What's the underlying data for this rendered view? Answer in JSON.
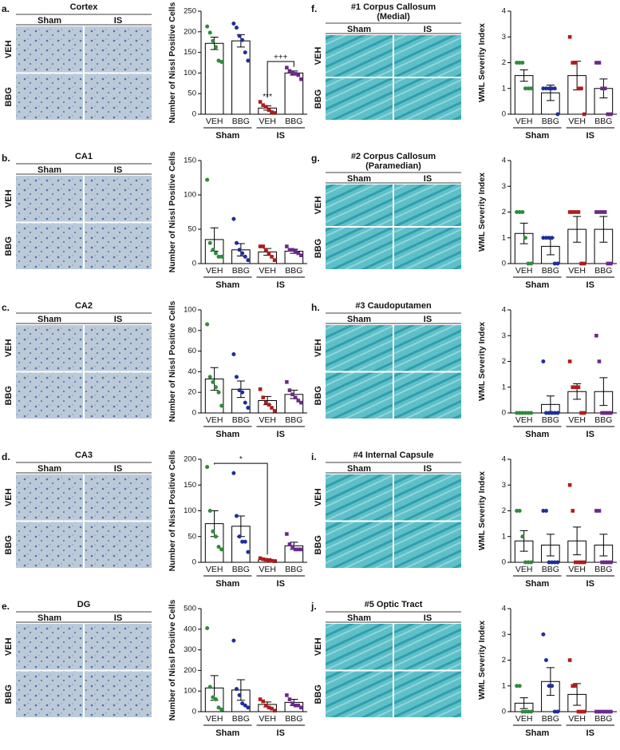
{
  "chart_data": [
    {
      "type": "bar",
      "panel": "a.",
      "title": [
        "Cortex"
      ],
      "columns": [
        "Sham",
        "IS"
      ],
      "rows": [
        "VEH",
        "BBG"
      ],
      "image_style": "nissl",
      "ylabel": "Number of Nissl Positive Cells",
      "ylim": [
        0,
        250
      ],
      "yticks": [
        0,
        50,
        100,
        150,
        200,
        250
      ],
      "categories": [
        "VEH",
        "BBG",
        "VEH",
        "BBG"
      ],
      "groups": [
        "Sham",
        "IS"
      ],
      "colors": [
        "#2e8b3a",
        "#1f2e9a",
        "#b01c1c",
        "#6a2a8a"
      ],
      "markers": [
        "circle",
        "circle",
        "square",
        "square"
      ],
      "values": [
        172,
        178,
        15,
        100
      ],
      "errors": [
        15,
        15,
        5,
        5
      ],
      "points": [
        [
          213,
          198,
          178,
          163,
          130,
          127
        ],
        [
          220,
          210,
          190,
          180,
          150,
          130
        ],
        [
          30,
          22,
          18,
          10,
          5,
          3
        ],
        [
          113,
          105,
          100,
          98,
          95,
          85
        ]
      ],
      "annotations": [
        "***",
        "+++"
      ]
    },
    {
      "type": "bar",
      "panel": "b.",
      "title": [
        "CA1"
      ],
      "columns": [
        "Sham",
        "IS"
      ],
      "rows": [
        "VEH",
        "BBG"
      ],
      "image_style": "nissl",
      "ylabel": "Number of Nissl Positive Cells",
      "ylim": [
        0,
        150
      ],
      "yticks": [
        0,
        50,
        100,
        150
      ],
      "categories": [
        "VEH",
        "BBG",
        "VEH",
        "BBG"
      ],
      "groups": [
        "Sham",
        "IS"
      ],
      "colors": [
        "#2e8b3a",
        "#1f2e9a",
        "#b01c1c",
        "#6a2a8a"
      ],
      "markers": [
        "circle",
        "circle",
        "square",
        "square"
      ],
      "values": [
        35,
        20,
        17,
        18
      ],
      "errors": [
        17,
        9,
        5,
        3
      ],
      "points": [
        [
          122,
          30,
          20,
          15,
          10,
          10
        ],
        [
          65,
          30,
          20,
          15,
          10,
          5
        ],
        [
          25,
          25,
          20,
          15,
          10,
          5
        ],
        [
          25,
          20,
          20,
          18,
          15,
          12
        ]
      ]
    },
    {
      "type": "bar",
      "panel": "c.",
      "title": [
        "CA2"
      ],
      "columns": [
        "Sham",
        "IS"
      ],
      "rows": [
        "VEH",
        "BBG"
      ],
      "image_style": "nissl",
      "ylabel": "Number of Nissl Positive Cells",
      "ylim": [
        0,
        100
      ],
      "yticks": [
        0,
        20,
        40,
        60,
        80,
        100
      ],
      "categories": [
        "VEH",
        "BBG",
        "VEH",
        "BBG"
      ],
      "groups": [
        "Sham",
        "IS"
      ],
      "colors": [
        "#2e8b3a",
        "#1f2e9a",
        "#b01c1c",
        "#6a2a8a"
      ],
      "markers": [
        "circle",
        "circle",
        "square",
        "square"
      ],
      "values": [
        33,
        23,
        12,
        18
      ],
      "errors": [
        11,
        8,
        4,
        4
      ],
      "points": [
        [
          86,
          35,
          30,
          25,
          20,
          7
        ],
        [
          57,
          35,
          22,
          20,
          10,
          5
        ],
        [
          23,
          15,
          10,
          8,
          5,
          2
        ],
        [
          30,
          22,
          18,
          15,
          12,
          10
        ]
      ]
    },
    {
      "type": "bar",
      "panel": "d.",
      "title": [
        "CA3"
      ],
      "columns": [
        "Sham",
        "IS"
      ],
      "rows": [
        "VEH",
        "BBG"
      ],
      "image_style": "nissl",
      "ylabel": "Number of Nissl Positive Cells",
      "ylim": [
        0,
        200
      ],
      "yticks": [
        0,
        50,
        100,
        150,
        200
      ],
      "categories": [
        "VEH",
        "BBG",
        "VEH",
        "BBG"
      ],
      "groups": [
        "Sham",
        "IS"
      ],
      "colors": [
        "#2e8b3a",
        "#1f2e9a",
        "#b01c1c",
        "#6a2a8a"
      ],
      "markers": [
        "circle",
        "circle",
        "square",
        "square"
      ],
      "values": [
        75,
        70,
        5,
        32
      ],
      "errors": [
        25,
        20,
        2,
        7
      ],
      "points": [
        [
          185,
          100,
          60,
          50,
          30,
          25
        ],
        [
          173,
          90,
          50,
          40,
          40,
          20
        ],
        [
          8,
          6,
          5,
          4,
          3,
          2
        ],
        [
          55,
          35,
          30,
          25,
          25,
          25
        ]
      ],
      "annotations": [
        "*"
      ]
    },
    {
      "type": "bar",
      "panel": "e.",
      "title": [
        "DG"
      ],
      "columns": [
        "Sham",
        "IS"
      ],
      "rows": [
        "VEH",
        "BBG"
      ],
      "image_style": "nissl",
      "ylabel": "Number of Nissl Positive Cells",
      "ylim": [
        0,
        500
      ],
      "yticks": [
        0,
        100,
        200,
        300,
        400,
        500
      ],
      "categories": [
        "VEH",
        "BBG",
        "VEH",
        "BBG"
      ],
      "groups": [
        "Sham",
        "IS"
      ],
      "colors": [
        "#2e8b3a",
        "#1f2e9a",
        "#b01c1c",
        "#6a2a8a"
      ],
      "markers": [
        "circle",
        "circle",
        "square",
        "square"
      ],
      "values": [
        115,
        105,
        35,
        45
      ],
      "errors": [
        60,
        50,
        12,
        15
      ],
      "points": [
        [
          405,
          120,
          70,
          60,
          20,
          10
        ],
        [
          345,
          110,
          80,
          40,
          30,
          20
        ],
        [
          60,
          50,
          30,
          20,
          15,
          5
        ],
        [
          80,
          60,
          40,
          30,
          30,
          20
        ]
      ]
    },
    {
      "type": "bar",
      "panel": "f.",
      "title": [
        "#1 Corpus Callosum",
        "(Medial)"
      ],
      "columns": [
        "Sham",
        "IS"
      ],
      "rows": [
        "VEH",
        "BBG"
      ],
      "image_style": "lfb",
      "ylabel": "WML Severity Index",
      "ylim": [
        0,
        4
      ],
      "yticks": [
        0,
        1,
        2,
        3,
        4
      ],
      "categories": [
        "VEH",
        "BBG",
        "VEH",
        "BBG"
      ],
      "groups": [
        "Sham",
        "IS"
      ],
      "colors": [
        "#2e8b3a",
        "#1f2e9a",
        "#b01c1c",
        "#6a2a8a"
      ],
      "markers": [
        "circle",
        "circle",
        "square",
        "square"
      ],
      "values": [
        1.5,
        0.83,
        1.5,
        1.0
      ],
      "errors": [
        0.22,
        0.3,
        0.56,
        0.37
      ],
      "points": [
        [
          2,
          2,
          2,
          1,
          1,
          1
        ],
        [
          1,
          1,
          1,
          1,
          1,
          0
        ],
        [
          3,
          2,
          2,
          1,
          1,
          0
        ],
        [
          2,
          2,
          1,
          1,
          0,
          0
        ]
      ]
    },
    {
      "type": "bar",
      "panel": "g.",
      "title": [
        "#2 Corpus Callosum",
        "(Paramedian)"
      ],
      "columns": [
        "Sham",
        "IS"
      ],
      "rows": [
        "VEH",
        "BBG"
      ],
      "image_style": "lfb",
      "ylabel": "WML Severity Index",
      "ylim": [
        0,
        4
      ],
      "yticks": [
        0,
        1,
        2,
        3,
        4
      ],
      "categories": [
        "VEH",
        "BBG",
        "VEH",
        "BBG"
      ],
      "groups": [
        "Sham",
        "IS"
      ],
      "colors": [
        "#2e8b3a",
        "#1f2e9a",
        "#b01c1c",
        "#6a2a8a"
      ],
      "markers": [
        "circle",
        "circle",
        "square",
        "square"
      ],
      "values": [
        1.17,
        0.67,
        1.33,
        1.33
      ],
      "errors": [
        0.4,
        0.33,
        0.5,
        0.5
      ],
      "points": [
        [
          2,
          2,
          2,
          1,
          0,
          0
        ],
        [
          1,
          1,
          1,
          1,
          0,
          0
        ],
        [
          2,
          2,
          2,
          2,
          0,
          0
        ],
        [
          2,
          2,
          2,
          2,
          0,
          0
        ]
      ]
    },
    {
      "type": "bar",
      "panel": "h.",
      "title": [
        "#3 Caudoputamen"
      ],
      "columns": [
        "Sham",
        "IS"
      ],
      "rows": [
        "VEH",
        "BBG"
      ],
      "image_style": "lfb",
      "ylabel": "WML Severity Index",
      "ylim": [
        0,
        4
      ],
      "yticks": [
        0,
        1,
        2,
        3,
        4
      ],
      "categories": [
        "VEH",
        "BBG",
        "VEH",
        "BBG"
      ],
      "groups": [
        "Sham",
        "IS"
      ],
      "colors": [
        "#2e8b3a",
        "#1f2e9a",
        "#b01c1c",
        "#6a2a8a"
      ],
      "markers": [
        "circle",
        "circle",
        "square",
        "square"
      ],
      "values": [
        0,
        0.33,
        0.83,
        0.83
      ],
      "errors": [
        0,
        0.33,
        0.3,
        0.54
      ],
      "points": [
        [
          0,
          0,
          0,
          0,
          0,
          0
        ],
        [
          2,
          0,
          0,
          0,
          0,
          0
        ],
        [
          2,
          1,
          1,
          1,
          0,
          0
        ],
        [
          3,
          2,
          0,
          0,
          0,
          0
        ]
      ]
    },
    {
      "type": "bar",
      "panel": "i.",
      "title": [
        "#4 Internal Capsule"
      ],
      "columns": [
        "Sham",
        "IS"
      ],
      "rows": [
        "VEH",
        "BBG"
      ],
      "image_style": "lfb",
      "ylabel": "WML Severity Index",
      "ylim": [
        0,
        4
      ],
      "yticks": [
        0,
        1,
        2,
        3,
        4
      ],
      "categories": [
        "VEH",
        "BBG",
        "VEH",
        "BBG"
      ],
      "groups": [
        "Sham",
        "IS"
      ],
      "colors": [
        "#2e8b3a",
        "#1f2e9a",
        "#b01c1c",
        "#6a2a8a"
      ],
      "markers": [
        "circle",
        "circle",
        "square",
        "square"
      ],
      "values": [
        0.83,
        0.67,
        0.83,
        0.67
      ],
      "errors": [
        0.4,
        0.42,
        0.54,
        0.42
      ],
      "points": [
        [
          2,
          2,
          1,
          0,
          0,
          0
        ],
        [
          2,
          2,
          0,
          0,
          0,
          0
        ],
        [
          3,
          2,
          0,
          0,
          0,
          0
        ],
        [
          2,
          2,
          0,
          0,
          0,
          0
        ]
      ]
    },
    {
      "type": "bar",
      "panel": "j.",
      "title": [
        "#5 Optic Tract"
      ],
      "columns": [
        "Sham",
        "IS"
      ],
      "rows": [
        "VEH",
        "BBG"
      ],
      "image_style": "lfb",
      "ylabel": "WML Severity Index",
      "ylim": [
        0,
        4
      ],
      "yticks": [
        0,
        1,
        2,
        3,
        4
      ],
      "categories": [
        "VEH",
        "BBG",
        "VEH",
        "BBG"
      ],
      "groups": [
        "Sham",
        "IS"
      ],
      "colors": [
        "#2e8b3a",
        "#1f2e9a",
        "#b01c1c",
        "#6a2a8a"
      ],
      "markers": [
        "circle",
        "circle",
        "square",
        "square"
      ],
      "values": [
        0.33,
        1.17,
        0.67,
        0
      ],
      "errors": [
        0.21,
        0.54,
        0.42,
        0
      ],
      "points": [
        [
          1,
          1,
          0,
          0,
          0,
          0
        ],
        [
          3,
          2,
          1,
          1,
          0,
          0
        ],
        [
          2,
          1,
          1,
          0,
          0,
          0
        ],
        [
          0,
          0,
          0,
          0,
          0,
          0
        ]
      ]
    }
  ]
}
